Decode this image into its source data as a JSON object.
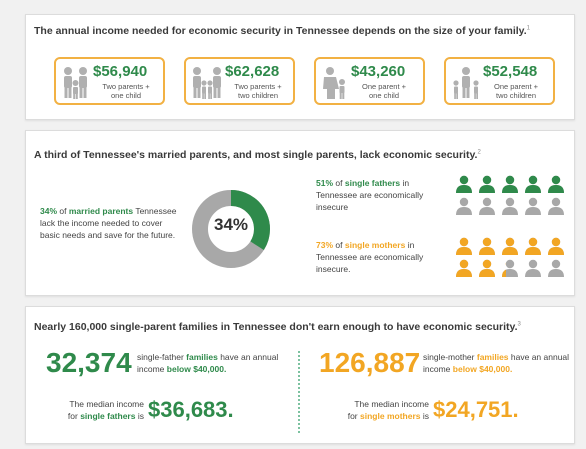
{
  "section1": {
    "heading": "The annual income needed for economic security in Tennessee depends on the size of your family.",
    "footnote": "1",
    "cards": [
      {
        "amount": "$56,940",
        "line1": "Two parents +",
        "line2": "one child",
        "icon": "family-two-parents-one-child-icon"
      },
      {
        "amount": "$62,628",
        "line1": "Two parents +",
        "line2": "two children",
        "icon": "family-two-parents-two-children-icon"
      },
      {
        "amount": "$43,260",
        "line1": "One parent +",
        "line2": "one child",
        "icon": "family-one-parent-one-child-icon"
      },
      {
        "amount": "$52,548",
        "line1": "One parent +",
        "line2": "two children",
        "icon": "family-one-parent-two-children-icon"
      }
    ]
  },
  "section2": {
    "heading": "A third of Tennessee's married parents, and most single parents, lack economic security.",
    "footnote": "2",
    "married": {
      "pct": "34%",
      "bold": "married parents",
      "pre": "of",
      "rest": "Tennessee lack the income needed to cover basic needs and save for the future.",
      "donut_label": "34%",
      "donut_fraction": 0.34
    },
    "fathers": {
      "pct": "51%",
      "pre": "of",
      "bold": "single fathers",
      "post": "in",
      "rest": "Tennessee are economically insecure",
      "insecure_fraction": 0.51
    },
    "mothers": {
      "pct": "73%",
      "pre": "of",
      "bold": "single mothers",
      "post": "in",
      "rest": "Tennessee are economically insecure.",
      "insecure_fraction": 0.73
    }
  },
  "section3": {
    "heading": "Nearly 160,000 single-parent families in Tennessee don't earn enough to have economic security.",
    "footnote": "3",
    "fathers": {
      "count": "32,374",
      "pre": "single-father",
      "bold1": "families",
      "mid": "have an annual income",
      "bold2": "below $40,000.",
      "median_label1": "The median income",
      "median_label2": "for",
      "median_bold": "single fathers",
      "median_post": "is",
      "median_value": "$36,683."
    },
    "mothers": {
      "count": "126,887",
      "pre": "single-mother",
      "bold1": "families",
      "mid": "have an annual income",
      "bold2": "below $40,000.",
      "median_label1": "The median income",
      "median_label2": "for",
      "median_bold": "single mothers",
      "median_post": "is",
      "median_value": "$24,751."
    }
  },
  "colors": {
    "green": "#2f8a4b",
    "gold": "#f2a623",
    "gray": "#a8a8a8",
    "card_border": "#f2b143"
  }
}
